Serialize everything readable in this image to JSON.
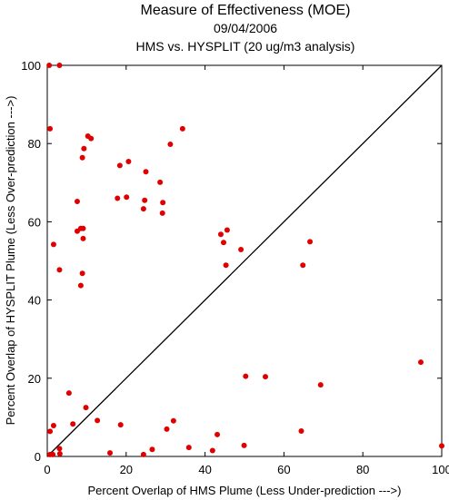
{
  "chart_data": {
    "type": "scatter",
    "title": "Measure of Effectiveness (MOE)",
    "subtitle1": "09/04/2006",
    "subtitle2": "HMS vs. HYSPLIT  (20 ug/m3 analysis)",
    "xlabel": "Percent Overlap of HMS Plume (Less Under-prediction --->)",
    "ylabel": "Percent Overlap of HYSPLIT Plume (Less Over-prediction --->)",
    "xlim": [
      0,
      100
    ],
    "ylim": [
      0,
      100
    ],
    "xticks": [
      "0",
      "20",
      "40",
      "60",
      "80",
      "100"
    ],
    "yticks": [
      "0",
      "20",
      "40",
      "60",
      "80",
      "100"
    ],
    "diagonal": true,
    "point_color": "#e00000",
    "points": [
      [
        0.5,
        100
      ],
      [
        3.1,
        100
      ],
      [
        0.7,
        83.8
      ],
      [
        1.6,
        54.2
      ],
      [
        3.1,
        47.7
      ],
      [
        0.7,
        6.4
      ],
      [
        1.6,
        7.9
      ],
      [
        0.7,
        0.5
      ],
      [
        1.4,
        0.5
      ],
      [
        3.1,
        2.0
      ],
      [
        3.2,
        0.7
      ],
      [
        5.5,
        16.2
      ],
      [
        6.5,
        8.3
      ],
      [
        9.8,
        12.5
      ],
      [
        12.7,
        9.2
      ],
      [
        15.9,
        0.9
      ],
      [
        18.6,
        8.1
      ],
      [
        7.6,
        57.6
      ],
      [
        7.6,
        65.2
      ],
      [
        8.5,
        58.3
      ],
      [
        8.5,
        43.7
      ],
      [
        8.9,
        46.8
      ],
      [
        8.9,
        76.4
      ],
      [
        9.1,
        58.3
      ],
      [
        9.1,
        55.7
      ],
      [
        9.3,
        78.7
      ],
      [
        10.3,
        81.9
      ],
      [
        11.1,
        81.3
      ],
      [
        17.8,
        66.0
      ],
      [
        18.4,
        74.4
      ],
      [
        20.1,
        66.3
      ],
      [
        20.6,
        75.4
      ],
      [
        24.4,
        63.3
      ],
      [
        24.7,
        65.5
      ],
      [
        25.0,
        72.8
      ],
      [
        28.6,
        70.1
      ],
      [
        29.2,
        62.2
      ],
      [
        29.3,
        64.9
      ],
      [
        31.2,
        79.8
      ],
      [
        34.3,
        83.8
      ],
      [
        24.4,
        0.5
      ],
      [
        26.6,
        1.8
      ],
      [
        30.3,
        7.0
      ],
      [
        32.0,
        9.1
      ],
      [
        35.9,
        2.3
      ],
      [
        41.9,
        1.5
      ],
      [
        43.1,
        5.6
      ],
      [
        44.0,
        56.8
      ],
      [
        44.7,
        54.7
      ],
      [
        45.3,
        48.9
      ],
      [
        45.6,
        57.9
      ],
      [
        49.1,
        52.9
      ],
      [
        50.3,
        20.5
      ],
      [
        49.9,
        2.8
      ],
      [
        55.3,
        20.4
      ],
      [
        64.8,
        48.9
      ],
      [
        64.4,
        6.5
      ],
      [
        66.6,
        54.9
      ],
      [
        69.3,
        18.3
      ],
      [
        94.7,
        24.1
      ],
      [
        100,
        2.7
      ]
    ]
  }
}
